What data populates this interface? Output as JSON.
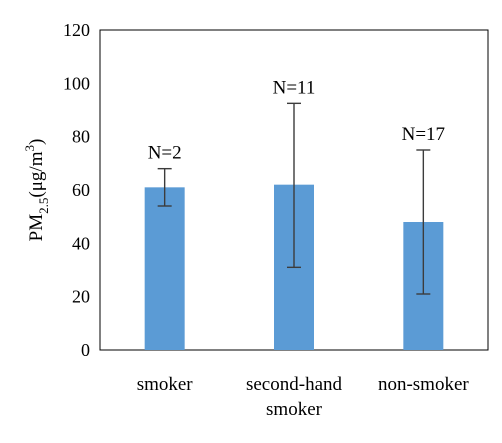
{
  "chart_data": {
    "type": "bar",
    "categories": [
      [
        "smoker"
      ],
      [
        "second-hand",
        "smoker"
      ],
      [
        "non-smoker"
      ]
    ],
    "values": [
      61,
      62,
      48
    ],
    "error": [
      [
        54,
        68
      ],
      [
        31,
        92.5
      ],
      [
        21,
        75
      ]
    ],
    "data_labels": [
      "N=2",
      "N=11",
      "N=17"
    ],
    "ylabel": {
      "base": "PM",
      "sub": "2.5",
      "mid": "(μg/m",
      "sup": "3",
      "end": ")"
    },
    "ylim": [
      0,
      120
    ],
    "yticks": [
      "0",
      "20",
      "40",
      "60",
      "80",
      "100",
      "120"
    ],
    "grid": false,
    "colors": {
      "bar": "#5B9BD5",
      "error_bar": "#3c3c3c",
      "axis": "#000000"
    }
  }
}
